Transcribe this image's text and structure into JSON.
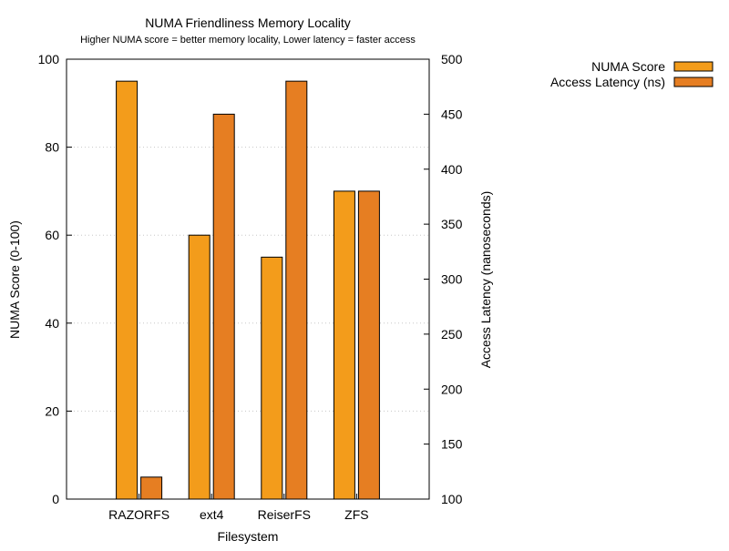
{
  "chart_data": {
    "type": "bar",
    "title": "NUMA Friendliness  Memory Locality",
    "subtitle": "Higher NUMA score = better memory locality, Lower latency = faster access",
    "xlabel": "Filesystem",
    "ylabel": "NUMA Score (0-100)",
    "y2label": "Access Latency (nanoseconds)",
    "categories": [
      "RAZORFS",
      "ext4",
      "ReiserFS",
      "ZFS"
    ],
    "ylim": [
      0,
      100
    ],
    "y2lim": [
      100,
      500
    ],
    "yticks": [
      0,
      20,
      40,
      60,
      80,
      100
    ],
    "y2ticks": [
      100,
      150,
      200,
      250,
      300,
      350,
      400,
      450,
      500
    ],
    "grid": true,
    "legend_position": "top-right",
    "series": [
      {
        "name": "NUMA Score",
        "axis": "left",
        "color": "#f39c1b",
        "values": [
          95,
          60,
          55,
          70
        ]
      },
      {
        "name": "Access Latency (ns)",
        "axis": "right",
        "color": "#e67e22",
        "values": [
          120,
          450,
          480,
          380
        ]
      }
    ]
  }
}
